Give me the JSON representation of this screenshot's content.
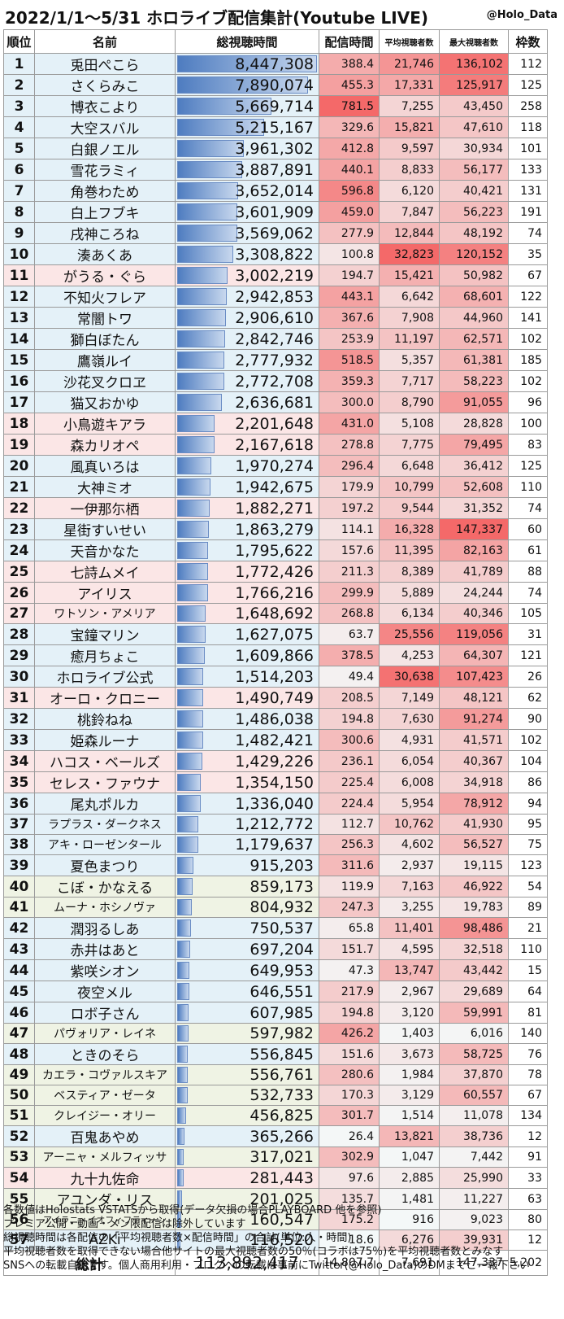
{
  "header": {
    "title": "2022/1/1～5/31 ホロライブ配信集計(Youtube LIVE)",
    "credit": "@Holo_Data"
  },
  "columns": {
    "rank": "順位",
    "name": "名前",
    "total_watch": "総視聴時間",
    "stream_time": "配信時間",
    "avg_viewers": "平均視聴者数",
    "max_viewers": "最大視聴者数",
    "frames": "枠数"
  },
  "colors": {
    "group_1": "#e4f1f8",
    "group_2": "#fbe6e6",
    "group_3": "#eff3e4",
    "bar": "#4e7cc0",
    "heat": "#f07070"
  },
  "chart_data": {
    "type": "table",
    "title": "2022/1/1～5/31 ホロライブ配信集計(Youtube LIVE)",
    "rows": [
      {
        "rank": "1",
        "name": "兎田ぺこら",
        "total": "8,447,308",
        "stream": "388.4",
        "avg": "21,746",
        "max": "136,102",
        "frames": "112",
        "group": 1
      },
      {
        "rank": "2",
        "name": "さくらみこ",
        "total": "7,890,074",
        "stream": "455.3",
        "avg": "17,331",
        "max": "125,917",
        "frames": "125",
        "group": 1
      },
      {
        "rank": "3",
        "name": "博衣こより",
        "total": "5,669,714",
        "stream": "781.5",
        "avg": "7,255",
        "max": "43,450",
        "frames": "258",
        "group": 1
      },
      {
        "rank": "4",
        "name": "大空スバル",
        "total": "5,215,167",
        "stream": "329.6",
        "avg": "15,821",
        "max": "47,610",
        "frames": "118",
        "group": 1
      },
      {
        "rank": "5",
        "name": "白銀ノエル",
        "total": "3,961,302",
        "stream": "412.8",
        "avg": "9,597",
        "max": "30,934",
        "frames": "101",
        "group": 1
      },
      {
        "rank": "6",
        "name": "雪花ラミィ",
        "total": "3,887,891",
        "stream": "440.1",
        "avg": "8,833",
        "max": "56,177",
        "frames": "133",
        "group": 1
      },
      {
        "rank": "7",
        "name": "角巻わため",
        "total": "3,652,014",
        "stream": "596.8",
        "avg": "6,120",
        "max": "40,421",
        "frames": "131",
        "group": 1
      },
      {
        "rank": "8",
        "name": "白上フブキ",
        "total": "3,601,909",
        "stream": "459.0",
        "avg": "7,847",
        "max": "56,223",
        "frames": "191",
        "group": 1
      },
      {
        "rank": "9",
        "name": "戌神ころね",
        "total": "3,569,062",
        "stream": "277.9",
        "avg": "12,844",
        "max": "48,192",
        "frames": "74",
        "group": 1
      },
      {
        "rank": "10",
        "name": "湊あくあ",
        "total": "3,308,822",
        "stream": "100.8",
        "avg": "32,823",
        "max": "120,152",
        "frames": "35",
        "group": 1
      },
      {
        "rank": "11",
        "name": "がうる・ぐら",
        "total": "3,002,219",
        "stream": "194.7",
        "avg": "15,421",
        "max": "50,982",
        "frames": "67",
        "group": 2
      },
      {
        "rank": "12",
        "name": "不知火フレア",
        "total": "2,942,853",
        "stream": "443.1",
        "avg": "6,642",
        "max": "68,601",
        "frames": "122",
        "group": 1
      },
      {
        "rank": "13",
        "name": "常闇トワ",
        "total": "2,906,610",
        "stream": "367.6",
        "avg": "7,908",
        "max": "44,960",
        "frames": "141",
        "group": 1
      },
      {
        "rank": "14",
        "name": "獅白ぼたん",
        "total": "2,842,746",
        "stream": "253.9",
        "avg": "11,197",
        "max": "62,571",
        "frames": "102",
        "group": 1
      },
      {
        "rank": "15",
        "name": "鷹嶺ルイ",
        "total": "2,777,932",
        "stream": "518.5",
        "avg": "5,357",
        "max": "61,381",
        "frames": "185",
        "group": 1
      },
      {
        "rank": "16",
        "name": "沙花叉クロヱ",
        "total": "2,772,708",
        "stream": "359.3",
        "avg": "7,717",
        "max": "58,223",
        "frames": "102",
        "group": 1
      },
      {
        "rank": "17",
        "name": "猫又おかゆ",
        "total": "2,636,681",
        "stream": "300.0",
        "avg": "8,790",
        "max": "91,055",
        "frames": "96",
        "group": 1
      },
      {
        "rank": "18",
        "name": "小鳥遊キアラ",
        "total": "2,201,648",
        "stream": "431.0",
        "avg": "5,108",
        "max": "28,828",
        "frames": "100",
        "group": 2
      },
      {
        "rank": "19",
        "name": "森カリオペ",
        "total": "2,167,618",
        "stream": "278.8",
        "avg": "7,775",
        "max": "79,495",
        "frames": "83",
        "group": 2
      },
      {
        "rank": "20",
        "name": "風真いろは",
        "total": "1,970,274",
        "stream": "296.4",
        "avg": "6,648",
        "max": "36,412",
        "frames": "125",
        "group": 1
      },
      {
        "rank": "21",
        "name": "大神ミオ",
        "total": "1,942,675",
        "stream": "179.9",
        "avg": "10,799",
        "max": "52,608",
        "frames": "110",
        "group": 1
      },
      {
        "rank": "22",
        "name": "一伊那尓栖",
        "total": "1,882,271",
        "stream": "197.2",
        "avg": "9,544",
        "max": "31,352",
        "frames": "74",
        "group": 2
      },
      {
        "rank": "23",
        "name": "星街すいせい",
        "total": "1,863,279",
        "stream": "114.1",
        "avg": "16,328",
        "max": "147,337",
        "frames": "60",
        "group": 1
      },
      {
        "rank": "24",
        "name": "天音かなた",
        "total": "1,795,622",
        "stream": "157.6",
        "avg": "11,395",
        "max": "82,163",
        "frames": "61",
        "group": 1
      },
      {
        "rank": "25",
        "name": "七詩ムメイ",
        "total": "1,772,426",
        "stream": "211.3",
        "avg": "8,389",
        "max": "41,789",
        "frames": "88",
        "group": 2
      },
      {
        "rank": "26",
        "name": "アイリス",
        "total": "1,766,216",
        "stream": "299.9",
        "avg": "5,889",
        "max": "24,244",
        "frames": "74",
        "group": 2
      },
      {
        "rank": "27",
        "name": "ワトソン・アメリア",
        "total": "1,648,692",
        "stream": "268.8",
        "avg": "6,134",
        "max": "40,346",
        "frames": "105",
        "group": 2
      },
      {
        "rank": "28",
        "name": "宝鐘マリン",
        "total": "1,627,075",
        "stream": "63.7",
        "avg": "25,556",
        "max": "119,056",
        "frames": "31",
        "group": 1
      },
      {
        "rank": "29",
        "name": "癒月ちょこ",
        "total": "1,609,866",
        "stream": "378.5",
        "avg": "4,253",
        "max": "64,307",
        "frames": "121",
        "group": 1
      },
      {
        "rank": "30",
        "name": "ホロライブ公式",
        "total": "1,514,203",
        "stream": "49.4",
        "avg": "30,638",
        "max": "107,423",
        "frames": "26",
        "group": 1
      },
      {
        "rank": "31",
        "name": "オーロ・クロニー",
        "total": "1,490,749",
        "stream": "208.5",
        "avg": "7,149",
        "max": "48,121",
        "frames": "62",
        "group": 2
      },
      {
        "rank": "32",
        "name": "桃鈴ねね",
        "total": "1,486,038",
        "stream": "194.8",
        "avg": "7,630",
        "max": "91,274",
        "frames": "90",
        "group": 1
      },
      {
        "rank": "33",
        "name": "姫森ルーナ",
        "total": "1,482,421",
        "stream": "300.6",
        "avg": "4,931",
        "max": "41,571",
        "frames": "102",
        "group": 1
      },
      {
        "rank": "34",
        "name": "ハコス・ベールズ",
        "total": "1,429,226",
        "stream": "236.1",
        "avg": "6,054",
        "max": "40,367",
        "frames": "104",
        "group": 2
      },
      {
        "rank": "35",
        "name": "セレス・ファウナ",
        "total": "1,354,150",
        "stream": "225.4",
        "avg": "6,008",
        "max": "34,918",
        "frames": "86",
        "group": 2
      },
      {
        "rank": "36",
        "name": "尾丸ポルカ",
        "total": "1,336,040",
        "stream": "224.4",
        "avg": "5,954",
        "max": "78,912",
        "frames": "94",
        "group": 1
      },
      {
        "rank": "37",
        "name": "ラプラス・ダークネス",
        "total": "1,212,772",
        "stream": "112.7",
        "avg": "10,762",
        "max": "41,930",
        "frames": "95",
        "group": 1
      },
      {
        "rank": "38",
        "name": "アキ・ローゼンタール",
        "total": "1,179,637",
        "stream": "256.3",
        "avg": "4,602",
        "max": "56,527",
        "frames": "75",
        "group": 1
      },
      {
        "rank": "39",
        "name": "夏色まつり",
        "total": "915,203",
        "stream": "311.6",
        "avg": "2,937",
        "max": "19,115",
        "frames": "123",
        "group": 1
      },
      {
        "rank": "40",
        "name": "こぼ・かなえる",
        "total": "859,173",
        "stream": "119.9",
        "avg": "7,163",
        "max": "46,922",
        "frames": "54",
        "group": 3
      },
      {
        "rank": "41",
        "name": "ムーナ・ホシノヴァ",
        "total": "804,932",
        "stream": "247.3",
        "avg": "3,255",
        "max": "19,783",
        "frames": "89",
        "group": 3
      },
      {
        "rank": "42",
        "name": "潤羽るしあ",
        "total": "750,537",
        "stream": "65.8",
        "avg": "11,401",
        "max": "98,486",
        "frames": "21",
        "group": 1
      },
      {
        "rank": "43",
        "name": "赤井はあと",
        "total": "697,204",
        "stream": "151.7",
        "avg": "4,595",
        "max": "32,518",
        "frames": "110",
        "group": 1
      },
      {
        "rank": "44",
        "name": "紫咲シオン",
        "total": "649,953",
        "stream": "47.3",
        "avg": "13,747",
        "max": "43,442",
        "frames": "15",
        "group": 1
      },
      {
        "rank": "45",
        "name": "夜空メル",
        "total": "646,551",
        "stream": "217.9",
        "avg": "2,967",
        "max": "29,689",
        "frames": "64",
        "group": 1
      },
      {
        "rank": "46",
        "name": "ロボ子さん",
        "total": "607,985",
        "stream": "194.8",
        "avg": "3,120",
        "max": "59,991",
        "frames": "81",
        "group": 1
      },
      {
        "rank": "47",
        "name": "パヴォリア・レイネ",
        "total": "597,982",
        "stream": "426.2",
        "avg": "1,403",
        "max": "6,016",
        "frames": "140",
        "group": 3
      },
      {
        "rank": "48",
        "name": "ときのそら",
        "total": "556,845",
        "stream": "151.6",
        "avg": "3,673",
        "max": "58,725",
        "frames": "76",
        "group": 1
      },
      {
        "rank": "49",
        "name": "カエラ・コヴァルスキア",
        "total": "556,761",
        "stream": "280.6",
        "avg": "1,984",
        "max": "37,870",
        "frames": "78",
        "group": 3
      },
      {
        "rank": "50",
        "name": "ベスティア・ゼータ",
        "total": "532,733",
        "stream": "170.3",
        "avg": "3,129",
        "max": "60,557",
        "frames": "67",
        "group": 3
      },
      {
        "rank": "51",
        "name": "クレイジー・オリー",
        "total": "456,825",
        "stream": "301.7",
        "avg": "1,514",
        "max": "11,078",
        "frames": "134",
        "group": 3
      },
      {
        "rank": "52",
        "name": "百鬼あやめ",
        "total": "365,266",
        "stream": "26.4",
        "avg": "13,821",
        "max": "38,736",
        "frames": "12",
        "group": 1
      },
      {
        "rank": "53",
        "name": "アーニャ・メルフィッサ",
        "total": "317,021",
        "stream": "302.9",
        "avg": "1,047",
        "max": "7,442",
        "frames": "91",
        "group": 3
      },
      {
        "rank": "54",
        "name": "九十九佐命",
        "total": "281,443",
        "stream": "97.6",
        "avg": "2,885",
        "max": "25,990",
        "frames": "33",
        "group": 2
      },
      {
        "rank": "55",
        "name": "アユンダ・リス",
        "total": "201,025",
        "stream": "135.7",
        "avg": "1,481",
        "max": "11,227",
        "frames": "63",
        "group": 3
      },
      {
        "rank": "56",
        "name": "アイラニ・イオフィフティーン",
        "total": "160,547",
        "stream": "175.2",
        "avg": "916",
        "max": "9,023",
        "frames": "80",
        "group": 3
      },
      {
        "rank": "57",
        "name": "AZKi",
        "total": "116,520",
        "stream": "18.6",
        "avg": "6,276",
        "max": "39,931",
        "frames": "12",
        "group": 1
      }
    ],
    "total": {
      "label": "総計",
      "total": "113,892,417",
      "stream": "14,807.7",
      "avg": "7,691",
      "max": "147,337",
      "frames": "5,202"
    }
  },
  "notes": [
    "各数値はHolostats VSTATSから取得(データ欠損の場合PLAYBOARD 他を参照)",
    "プレミア公開・動画・メン限配信は除外しています",
    "総視聴時間は各配信の「平均視聴者数×配信時間」の合計(単位:人・時間)",
    "平均視聴者数を取得できない場合他サイトの最大視聴者数の50％(コラボは75％)を平均視聴者数とみなす",
    "SNSへの転載自由です。個人商用利用・ブログへの転載は事前にTwitter(@Holo_Data)のDMまでご一報下さい"
  ]
}
